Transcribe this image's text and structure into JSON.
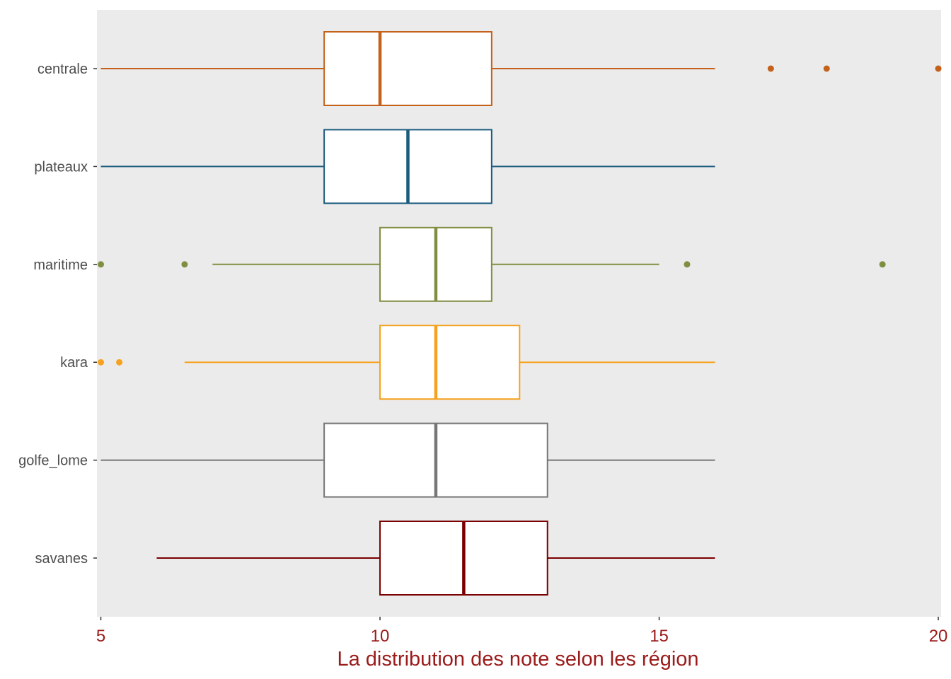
{
  "chart_data": {
    "type": "boxplot",
    "orientation": "horizontal",
    "title": "",
    "xlabel": "La distribution des note selon les région",
    "ylabel": "",
    "xlim": [
      4.93,
      20.05
    ],
    "x_ticks": [
      5,
      10,
      15,
      20
    ],
    "grid": false,
    "legend": "none",
    "panel_background": "#EBEBEB",
    "axis_text_color": "#9B1B1B",
    "box_fill": "#FFFFFF",
    "series": [
      {
        "name": "centrale",
        "color": "#C4621B",
        "whisker_low": 5,
        "q1": 9,
        "median": 10,
        "q3": 12,
        "whisker_high": 16,
        "outliers": [
          17,
          18,
          20
        ]
      },
      {
        "name": "plateaux",
        "color": "#1A5B7E",
        "whisker_low": 5,
        "q1": 9,
        "median": 10.5,
        "q3": 12,
        "whisker_high": 16,
        "outliers": []
      },
      {
        "name": "maritime",
        "color": "#7F8F42",
        "whisker_low": 7,
        "q1": 10,
        "median": 11,
        "q3": 12,
        "whisker_high": 15,
        "outliers": [
          5,
          6.5,
          15.5,
          19
        ]
      },
      {
        "name": "kara",
        "color": "#F6A21E",
        "whisker_low": 6.5,
        "q1": 10,
        "median": 11,
        "q3": 12.5,
        "whisker_high": 16,
        "outliers": [
          5,
          5.33
        ]
      },
      {
        "name": "golfe_lome",
        "color": "#767676",
        "whisker_low": 5,
        "q1": 9,
        "median": 11,
        "q3": 13,
        "whisker_high": 16,
        "outliers": []
      },
      {
        "name": "savanes",
        "color": "#7A0000",
        "whisker_low": 6,
        "q1": 10,
        "median": 11.5,
        "q3": 13,
        "whisker_high": 16,
        "outliers": []
      }
    ]
  }
}
